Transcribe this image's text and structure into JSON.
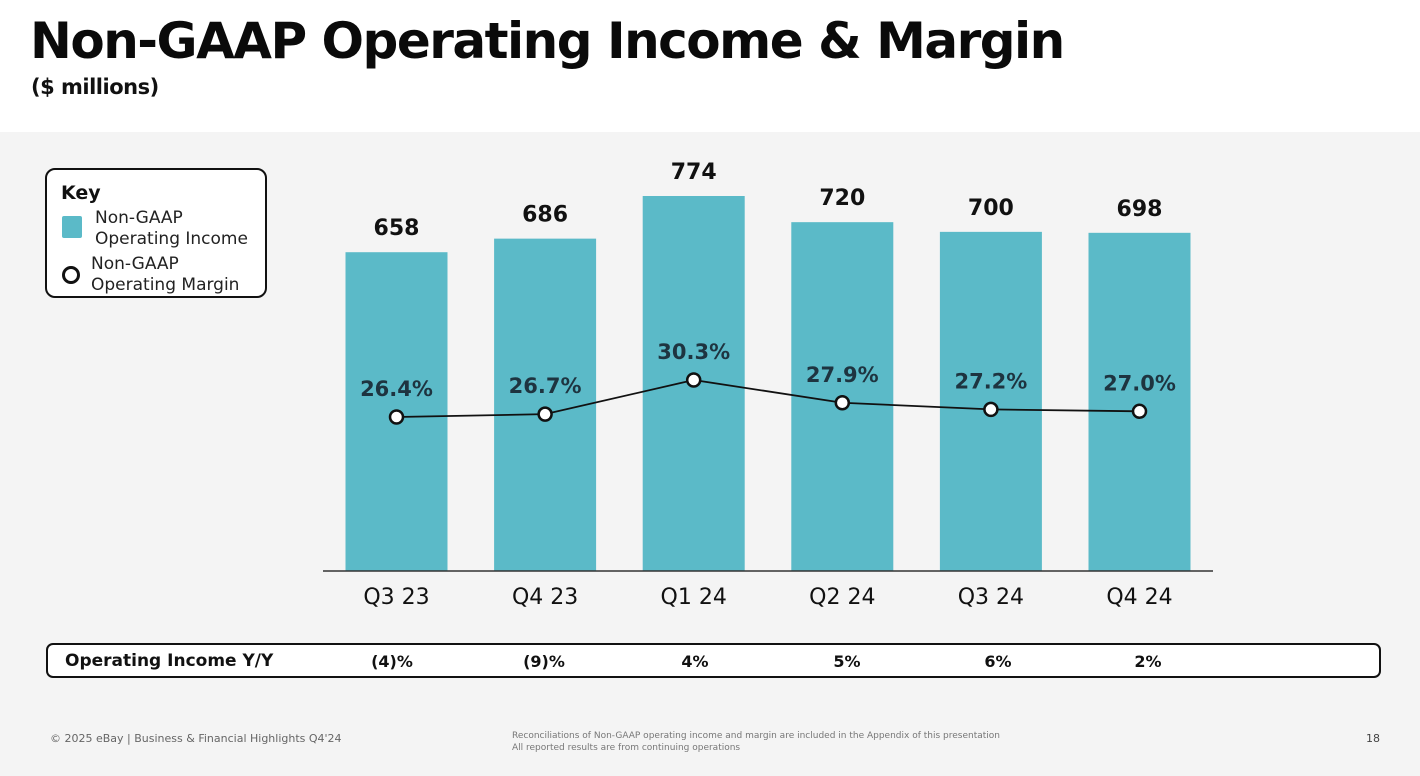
{
  "header": {
    "title": "Non-GAAP Operating Income & Margin",
    "subtitle": "($ millions)"
  },
  "key": {
    "title": "Key",
    "income_label": "Non-GAAP Operating Income",
    "margin_label": "Non-GAAP Operating Margin"
  },
  "colors": {
    "bar": "#5bbac8",
    "line": "#111111",
    "background": "#f4f4f4"
  },
  "chart_data": {
    "type": "bar",
    "title": "Non-GAAP Operating Income & Margin",
    "ylabel": "$ millions",
    "xlabel": "",
    "categories": [
      "Q3 23",
      "Q4 23",
      "Q1 24",
      "Q2 24",
      "Q3 24",
      "Q4 24"
    ],
    "series": [
      {
        "name": "Non-GAAP Operating Income",
        "type": "bar",
        "values": [
          658,
          686,
          774,
          720,
          700,
          698
        ],
        "labels": [
          "658",
          "686",
          "774",
          "720",
          "700",
          "698"
        ]
      },
      {
        "name": "Non-GAAP Operating Margin",
        "type": "line",
        "values": [
          26.4,
          26.7,
          30.3,
          27.9,
          27.2,
          27.0
        ],
        "labels": [
          "26.4%",
          "26.7%",
          "30.3%",
          "27.9%",
          "27.2%",
          "27.0%"
        ]
      }
    ],
    "ylim": [
      0,
      774
    ],
    "grid": false,
    "legend": "top-left"
  },
  "yoy": {
    "label": "Operating Income Y/Y",
    "values": [
      "(4)%",
      "(9)%",
      "4%",
      "5%",
      "6%",
      "2%"
    ]
  },
  "footer": {
    "left": "© 2025 eBay | Business & Financial Highlights Q4'24",
    "note_line1": "Reconciliations of Non-GAAP operating income and margin are included in the Appendix of this presentation",
    "note_line2": "All reported results are from continuing operations",
    "page": "18"
  }
}
